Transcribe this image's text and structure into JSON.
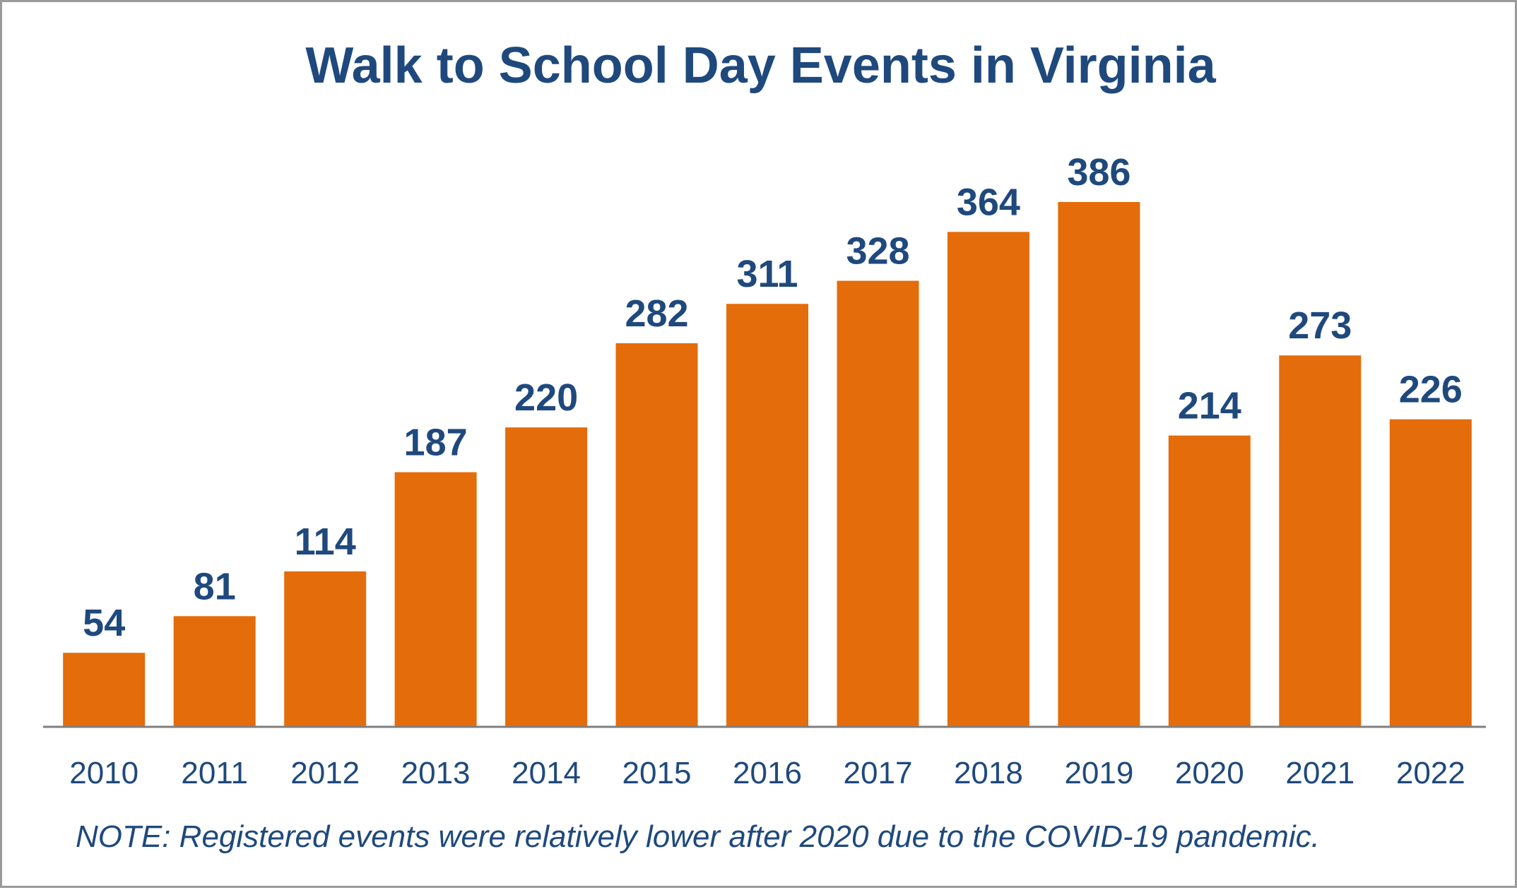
{
  "chart_data": {
    "type": "bar",
    "title": "Walk to School Day Events in Virginia",
    "note": "NOTE: Registered events were relatively lower after 2020 due to the COVID-19 pandemic.",
    "categories": [
      "2010",
      "2011",
      "2012",
      "2013",
      "2014",
      "2015",
      "2016",
      "2017",
      "2018",
      "2019",
      "2020",
      "2021",
      "2022"
    ],
    "values": [
      54,
      81,
      114,
      187,
      220,
      282,
      311,
      328,
      364,
      386,
      214,
      273,
      226
    ],
    "xlabel": "",
    "ylabel": "",
    "ylim": [
      0,
      386
    ],
    "grid": false,
    "legend": "none",
    "data_labels": true,
    "colors": {
      "bar": "#e46c0a",
      "text": "#1f497d",
      "axis": "#7f7f7f",
      "border": "#9a9a9a"
    }
  }
}
